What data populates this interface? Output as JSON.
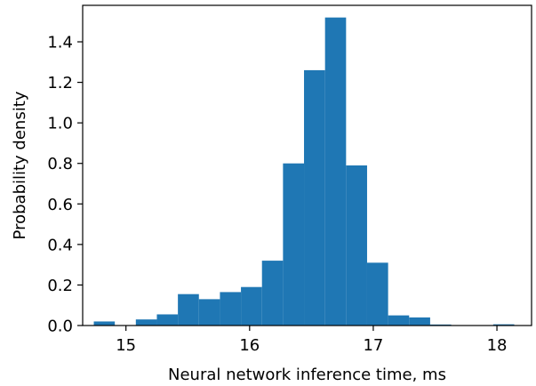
{
  "chart_data": {
    "type": "bar",
    "title": "",
    "xlabel": "Neural network inference time, ms",
    "ylabel": "Probability density",
    "xlim": [
      14.65,
      18.28
    ],
    "ylim": [
      0,
      1.58
    ],
    "xticks": [
      15,
      16,
      17,
      18
    ],
    "yticks": [
      0.0,
      0.2,
      0.4,
      0.6,
      0.8,
      1.0,
      1.2,
      1.4
    ],
    "xtick_labels": [
      "15",
      "16",
      "17",
      "18"
    ],
    "ytick_labels": [
      "0.0",
      "0.2",
      "0.4",
      "0.6",
      "0.8",
      "1.0",
      "1.2",
      "1.4"
    ],
    "bin_edges": [
      14.74,
      14.91,
      15.08,
      15.25,
      15.42,
      15.59,
      15.76,
      15.93,
      16.1,
      16.27,
      16.44,
      16.61,
      16.78,
      16.95,
      17.12,
      17.29,
      17.46,
      17.63,
      17.8,
      17.97,
      18.14
    ],
    "values": [
      0.02,
      0.0,
      0.03,
      0.055,
      0.155,
      0.13,
      0.165,
      0.19,
      0.32,
      0.8,
      1.26,
      1.52,
      0.79,
      0.31,
      0.05,
      0.04,
      0.005,
      0.0,
      0.0,
      0.006
    ],
    "bar_color": "#1f77b4",
    "grid": false,
    "legend": "none"
  }
}
